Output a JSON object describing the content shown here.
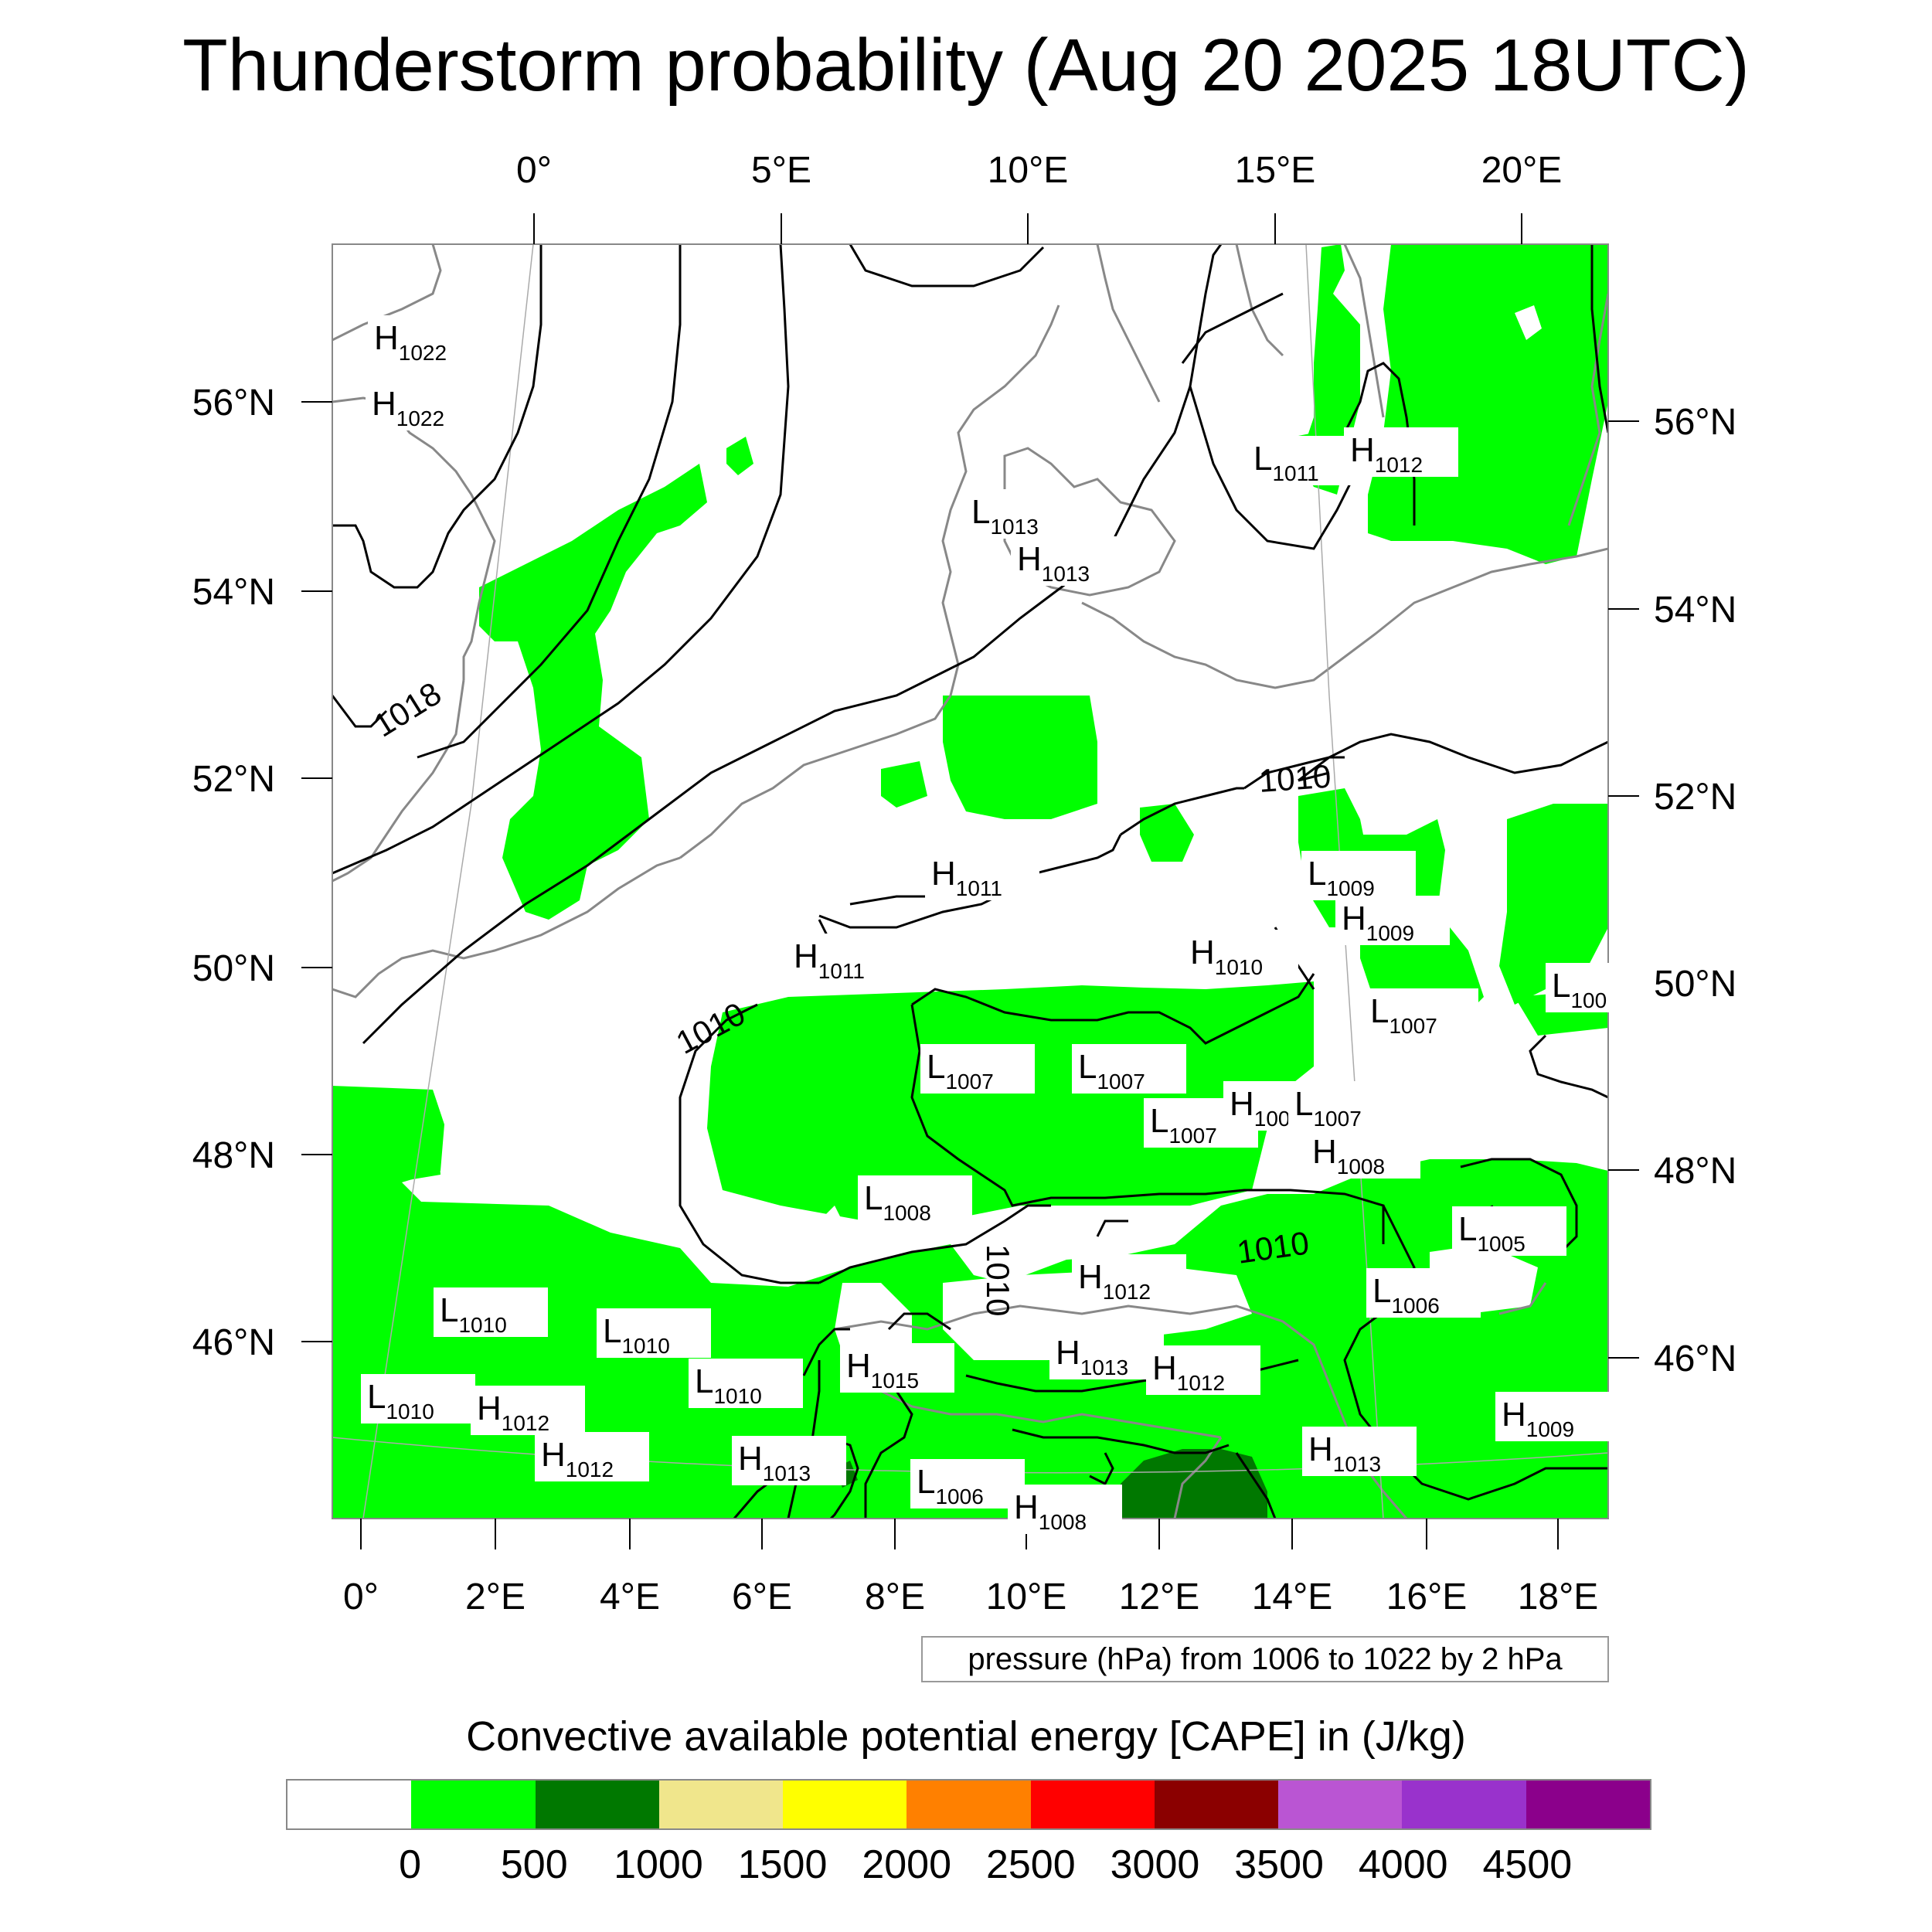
{
  "title": "Thunderstorm probability (Aug 20 2025 18UTC)",
  "top_lon_labels": [
    "0°",
    "5°E",
    "10°E",
    "15°E",
    "20°E"
  ],
  "bottom_lon_labels": [
    "0°",
    "2°E",
    "4°E",
    "6°E",
    "8°E",
    "10°E",
    "12°E",
    "14°E",
    "16°E",
    "18°E"
  ],
  "left_lat_labels": [
    "56°N",
    "54°N",
    "52°N",
    "50°N",
    "48°N",
    "46°N"
  ],
  "right_lat_labels": [
    "56°N",
    "54°N",
    "52°N",
    "50°N",
    "48°N",
    "46°N"
  ],
  "isobar_labels": [
    "1018",
    "1010",
    "1010",
    "1010",
    "1010"
  ],
  "pressure_centers": [
    {
      "type": "H",
      "value": "1022"
    },
    {
      "type": "H",
      "value": "1022"
    },
    {
      "type": "L",
      "value": "1013"
    },
    {
      "type": "H",
      "value": "1013"
    },
    {
      "type": "L",
      "value": "1011"
    },
    {
      "type": "H",
      "value": "1012"
    },
    {
      "type": "H",
      "value": "1011"
    },
    {
      "type": "H",
      "value": "1011"
    },
    {
      "type": "L",
      "value": "1009"
    },
    {
      "type": "H",
      "value": "1009"
    },
    {
      "type": "H",
      "value": "1010"
    },
    {
      "type": "L",
      "value": "1007"
    },
    {
      "type": "L",
      "value": "100"
    },
    {
      "type": "L",
      "value": "1007"
    },
    {
      "type": "L",
      "value": "1007"
    },
    {
      "type": "L",
      "value": "1007"
    },
    {
      "type": "H",
      "value": "100"
    },
    {
      "type": "L",
      "value": "1007"
    },
    {
      "type": "H",
      "value": "1008"
    },
    {
      "type": "L",
      "value": "1008"
    },
    {
      "type": "L",
      "value": "1005"
    },
    {
      "type": "H",
      "value": "1012"
    },
    {
      "type": "L",
      "value": "1006"
    },
    {
      "type": "L",
      "value": "1010"
    },
    {
      "type": "L",
      "value": "1010"
    },
    {
      "type": "H",
      "value": "1013"
    },
    {
      "type": "H",
      "value": "1012"
    },
    {
      "type": "H",
      "value": "1015"
    },
    {
      "type": "L",
      "value": "1010"
    },
    {
      "type": "L",
      "value": "1010"
    },
    {
      "type": "H",
      "value": "1012"
    },
    {
      "type": "H",
      "value": "1012"
    },
    {
      "type": "H",
      "value": "1013"
    },
    {
      "type": "L",
      "value": "1006"
    },
    {
      "type": "H",
      "value": "1009"
    },
    {
      "type": "H",
      "value": "1013"
    },
    {
      "type": "H",
      "value": "1008"
    }
  ],
  "pressure_note": "pressure (hPa) from 1006 to 1022 by 2 hPa",
  "colorbar": {
    "title": "Convective available potential energy [CAPE] in (J/kg)",
    "colors": [
      "#ffffff",
      "#00ff00",
      "#007800",
      "#f0e68c",
      "#ffff00",
      "#ff8000",
      "#ff0000",
      "#8b0000",
      "#ba55d3",
      "#9932cc",
      "#8b008b"
    ],
    "ticks": [
      "0",
      "500",
      "1000",
      "1500",
      "2000",
      "2500",
      "3000",
      "3500",
      "4000",
      "4500"
    ]
  },
  "map_colors": {
    "cape_low": "#00ff00",
    "cape_mid": "#007800",
    "coastline": "#888888",
    "isobar": "#000000",
    "grid": "#aaaaaa"
  }
}
